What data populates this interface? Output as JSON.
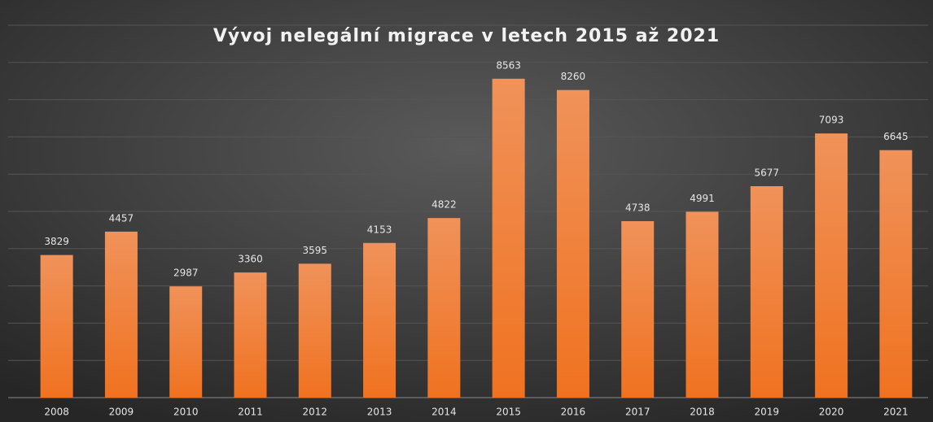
{
  "chart_data": {
    "type": "bar",
    "title": "Vývoj nelegální migrace v letech 2015 až 2021",
    "categories": [
      "2008",
      "2009",
      "2010",
      "2011",
      "2012",
      "2013",
      "2014",
      "2015",
      "2016",
      "2017",
      "2018",
      "2019",
      "2020",
      "2021"
    ],
    "values": [
      3829,
      4457,
      2987,
      3360,
      3595,
      4153,
      4822,
      8563,
      8260,
      4738,
      4991,
      5677,
      7093,
      6645
    ],
    "color": "#f07a2a",
    "ylim": [
      0,
      10000
    ],
    "yticks": [
      0,
      1000,
      2000,
      3000,
      4000,
      5000,
      6000,
      7000,
      8000,
      9000,
      10000
    ],
    "grid": true
  }
}
